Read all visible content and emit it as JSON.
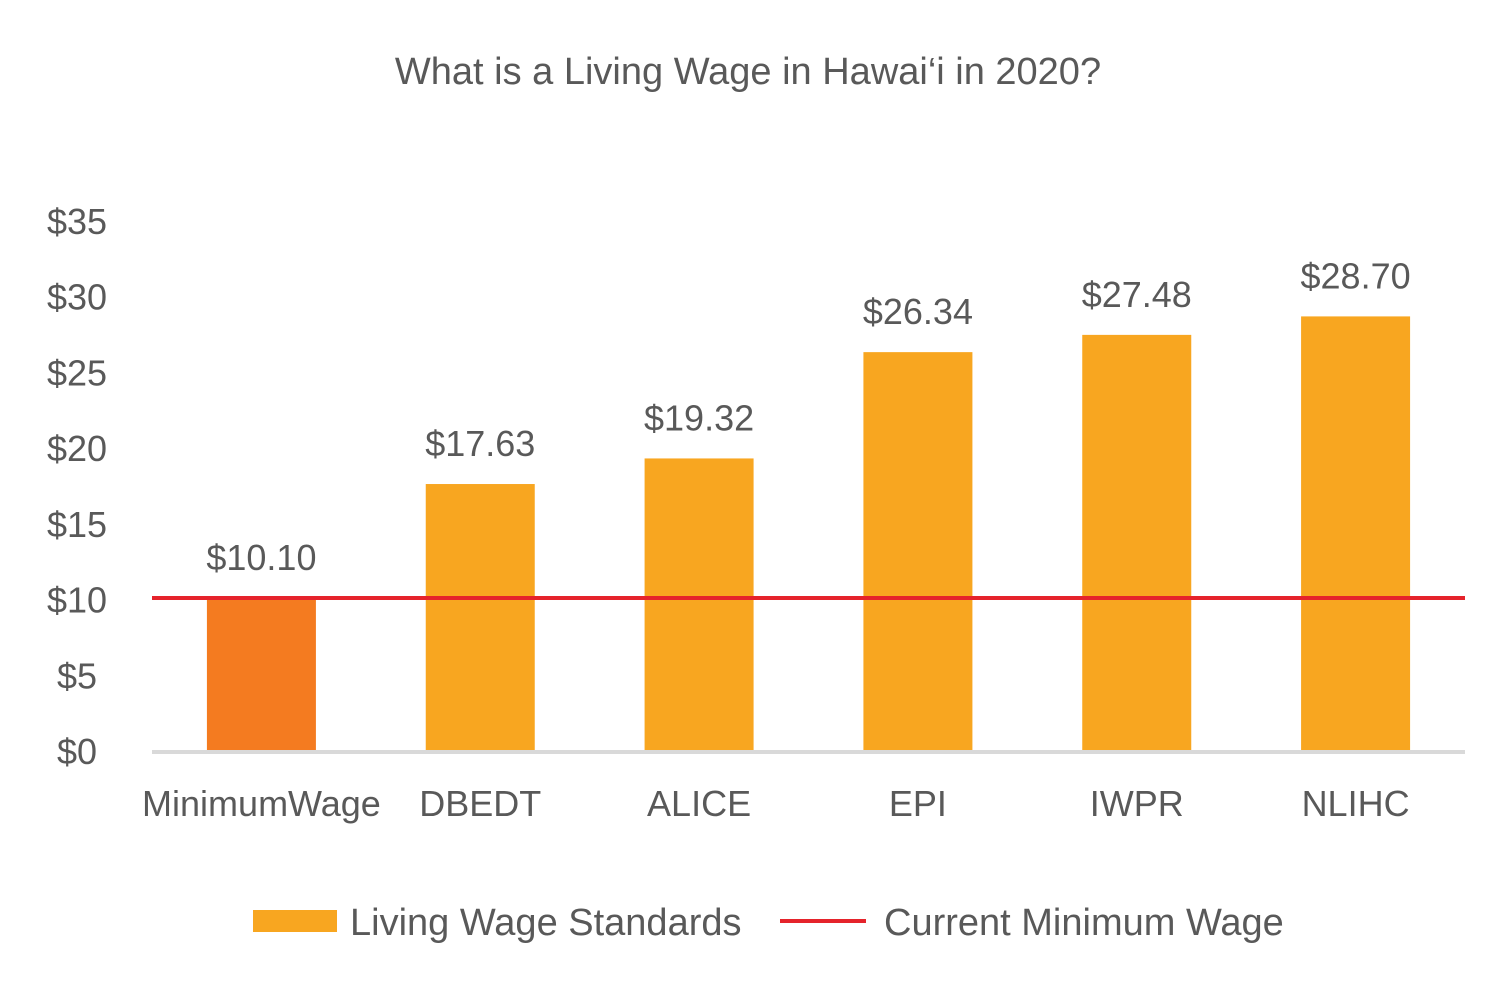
{
  "chart_data": {
    "type": "bar",
    "title": "What is a Living Wage in Hawai‘i in 2020?",
    "categories": [
      "MinimumWage",
      "DBEDT",
      "ALICE",
      "EPI",
      "IWPR",
      "NLIHC"
    ],
    "values": [
      10.1,
      17.63,
      19.32,
      26.34,
      27.48,
      28.7
    ],
    "value_labels": [
      "$10.10",
      "$17.63",
      "$19.32",
      "$26.34",
      "$27.48",
      "$28.70"
    ],
    "y_ticks": [
      0,
      5,
      10,
      15,
      20,
      25,
      30,
      35
    ],
    "y_tick_labels": [
      "$0",
      "$5",
      "$10",
      "$15",
      "$20",
      "$25",
      "$30",
      "$35"
    ],
    "ylim": [
      0,
      35
    ],
    "xlabel": "",
    "ylabel": "",
    "grid": false,
    "reference_line": {
      "name": "Current Minimum Wage",
      "value": 10.1,
      "color": "#e5232b"
    },
    "series": [
      {
        "name": "Living Wage Standards",
        "values": [
          10.1,
          17.63,
          19.32,
          26.34,
          27.48,
          28.7
        ],
        "color": "#f8a620",
        "highlight_index": 0,
        "highlight_color": "#f47b20"
      }
    ],
    "legend": {
      "position": "bottom",
      "items": [
        {
          "label": "Living Wage Standards",
          "kind": "bar",
          "color": "#f8a620"
        },
        {
          "label": "Current Minimum Wage",
          "kind": "line",
          "color": "#e5232b"
        }
      ]
    },
    "axis_color": "#d9d9d9"
  }
}
